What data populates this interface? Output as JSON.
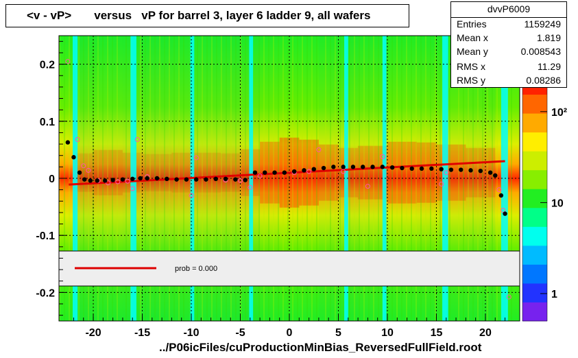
{
  "title": "<v - vP>       versus   vP for barrel 3, layer 6 ladder 9, all wafers",
  "xfoot": "../P06icFiles/cuProductionMinBias_ReversedFullField.root",
  "stats": {
    "name": "dvvP6009",
    "rows": [
      {
        "k": "Entries",
        "v": "1159249"
      },
      {
        "k": "Mean x",
        "v": "1.819"
      },
      {
        "k": "Mean y",
        "v": "0.008543"
      },
      {
        "k": "RMS x",
        "v": "11.29"
      },
      {
        "k": "RMS y",
        "v": "0.08286"
      }
    ]
  },
  "legend": {
    "label": "prob = 0.000",
    "line_color": "#dd0000"
  },
  "palette": {
    "frame": "#000000",
    "gap": "#00ffff",
    "fit": "#e00000",
    "profile": "#000000",
    "open_markers": "#ff55aa",
    "z_colors": [
      "#7722ee",
      "#2233ff",
      "#0077ff",
      "#00bbff",
      "#00ffee",
      "#00ff88",
      "#22ee22",
      "#88ee00",
      "#ccee00",
      "#ffee00",
      "#ffaa00",
      "#ff6600",
      "#ff2200"
    ]
  },
  "chart_data": {
    "type": "heatmap",
    "xlim": [
      -23.5,
      23.5
    ],
    "ylim": [
      -0.25,
      0.25
    ],
    "xticks": [
      -20,
      -15,
      -10,
      -5,
      0,
      5,
      10,
      15,
      20
    ],
    "yticks": [
      -0.2,
      -0.1,
      0,
      0.1,
      0.2
    ],
    "xtick_labels": [
      "-20",
      "-15",
      "-10",
      "-5",
      "0",
      "5",
      "10",
      "15",
      "20"
    ],
    "ytick_labels": [
      "-0.2",
      "-0.1",
      "0",
      "0.1",
      "0.2"
    ],
    "grid": true,
    "x_gaps": [
      [
        -22.1,
        -21.6
      ],
      [
        -16.2,
        -15.6
      ],
      [
        -10.1,
        -9.7
      ],
      [
        -4.1,
        -3.7
      ],
      [
        5.6,
        6.0
      ],
      [
        9.5,
        9.9
      ],
      [
        15.6,
        16.2
      ],
      [
        21.6,
        22.3
      ]
    ],
    "heat_profile": {
      "x": [
        -22,
        -20,
        -17,
        -15,
        -12,
        -10,
        -7,
        -5,
        -3,
        -1,
        1,
        3,
        5,
        7,
        10,
        13,
        15,
        18,
        21
      ],
      "intensity": [
        0.25,
        0.55,
        0.5,
        0.35,
        0.4,
        0.45,
        0.4,
        0.4,
        0.7,
        0.95,
        1.0,
        0.8,
        0.65,
        0.55,
        0.8,
        0.85,
        0.75,
        0.7,
        0.5
      ]
    },
    "z_axis": {
      "ticks": [
        1,
        10,
        100
      ],
      "tick_labels": [
        "1",
        "10",
        "10²"
      ]
    },
    "fit_line": {
      "x": [
        -22.5,
        22.0
      ],
      "y": [
        -0.011,
        0.03
      ]
    },
    "profile": {
      "x": [
        -22.6,
        -22.0,
        -21.4,
        -20.9,
        -20.3,
        -19.6,
        -18.8,
        -18.0,
        -17.0,
        -16.0,
        -15.2,
        -14.5,
        -13.5,
        -12.5,
        -11.5,
        -10.5,
        -9.5,
        -8.5,
        -7.5,
        -6.5,
        -5.5,
        -4.5,
        -3.5,
        -2.5,
        -1.5,
        -0.5,
        0.5,
        1.5,
        2.5,
        3.5,
        4.5,
        5.5,
        6.5,
        7.5,
        8.5,
        9.5,
        10.5,
        11.5,
        12.5,
        13.5,
        14.5,
        15.5,
        16.5,
        17.5,
        18.5,
        19.5,
        20.5,
        21.0,
        21.6,
        22.0
      ],
      "y": [
        0.063,
        0.037,
        0.01,
        -0.002,
        -0.004,
        -0.004,
        -0.004,
        -0.003,
        -0.002,
        -0.001,
        0.0,
        0.0,
        0.0,
        -0.001,
        -0.002,
        -0.002,
        -0.002,
        -0.002,
        -0.001,
        -0.001,
        -0.002,
        -0.003,
        0.01,
        0.01,
        0.01,
        0.01,
        0.012,
        0.014,
        0.016,
        0.018,
        0.02,
        0.02,
        0.02,
        0.02,
        0.02,
        0.02,
        0.019,
        0.018,
        0.017,
        0.017,
        0.017,
        0.016,
        0.015,
        0.015,
        0.014,
        0.013,
        0.01,
        0.005,
        -0.03,
        -0.062
      ]
    },
    "open_markers": {
      "x": [
        -22.6,
        -21.6,
        -21.0,
        -20.5,
        -19.5,
        -18.5,
        -17.5,
        -16.5,
        -16.0,
        -15.5,
        -14.5,
        -10.0,
        -9.5,
        -6.5,
        -5.0,
        -4.0,
        -3.0,
        0.5,
        2.0,
        3.0,
        5.5,
        8.0,
        9.5,
        15.5,
        16.0,
        21.4,
        21.8,
        22.4
      ],
      "y": [
        0.205,
        0.068,
        0.022,
        0.014,
        -0.004,
        -0.008,
        -0.006,
        -0.005,
        -0.018,
        0.068,
        0.003,
        -0.03,
        0.036,
        -0.003,
        -0.004,
        -0.016,
        0.004,
        0.01,
        0.012,
        0.05,
        0.012,
        -0.014,
        0.038,
        -0.01,
        0.01,
        -0.02,
        -0.056,
        -0.208
      ]
    }
  }
}
